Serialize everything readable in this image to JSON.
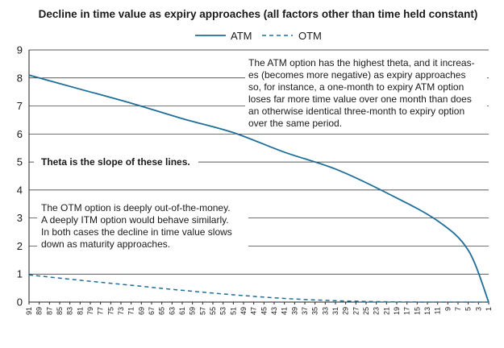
{
  "chart_data": {
    "type": "line",
    "title": "Decline in time value as expiry approaches (all factors other than time held constant)",
    "xlabel": "",
    "ylabel": "",
    "ylim": [
      0,
      9
    ],
    "yticks": [
      0,
      1,
      2,
      3,
      4,
      5,
      6,
      7,
      8,
      9
    ],
    "xlim": [
      91,
      1
    ],
    "x_reversed": true,
    "xticks": [
      91,
      89,
      87,
      85,
      83,
      81,
      79,
      77,
      75,
      73,
      71,
      69,
      67,
      65,
      63,
      61,
      59,
      57,
      55,
      53,
      51,
      49,
      47,
      45,
      43,
      41,
      39,
      37,
      35,
      33,
      31,
      29,
      27,
      25,
      23,
      21,
      19,
      17,
      15,
      13,
      11,
      9,
      7,
      5,
      3,
      1
    ],
    "grid": "horizontal",
    "legend_position": "top-center",
    "series": [
      {
        "name": "ATM",
        "color": "#1f6e99",
        "style": "solid",
        "x": [
          91,
          81,
          71,
          61,
          51,
          41,
          31,
          21,
          11,
          5,
          1
        ],
        "values": [
          8.1,
          7.6,
          7.1,
          6.55,
          6.05,
          5.35,
          4.75,
          3.9,
          2.9,
          1.85,
          0.0
        ]
      },
      {
        "name": "OTM",
        "color": "#1f6e99",
        "style": "dashed",
        "x": [
          91,
          81,
          71,
          61,
          51,
          41,
          31,
          21,
          11,
          5,
          1
        ],
        "values": [
          0.97,
          0.78,
          0.6,
          0.42,
          0.26,
          0.13,
          0.05,
          0.01,
          0.0,
          0.0,
          0.0
        ]
      }
    ],
    "annotations": [
      {
        "id": "atm_note",
        "lines": [
          "The ATM option has the highest theta, and it increas-",
          "es (becomes more negative) as expiry approaches",
          "so, for instance, a one-month to expiry ATM option",
          "loses far more time value over one month than does",
          "an otherwise identical three-month to expiry option",
          "over the same period."
        ]
      },
      {
        "id": "theta_note",
        "lines": [
          "Theta is the slope of these lines."
        ]
      },
      {
        "id": "otm_note",
        "lines": [
          "The OTM option is deeply out-of-the-money.",
          "A deeply ITM option would behave similarly.",
          "In both cases the decline in time value slows",
          "down as maturity approaches."
        ]
      }
    ]
  }
}
